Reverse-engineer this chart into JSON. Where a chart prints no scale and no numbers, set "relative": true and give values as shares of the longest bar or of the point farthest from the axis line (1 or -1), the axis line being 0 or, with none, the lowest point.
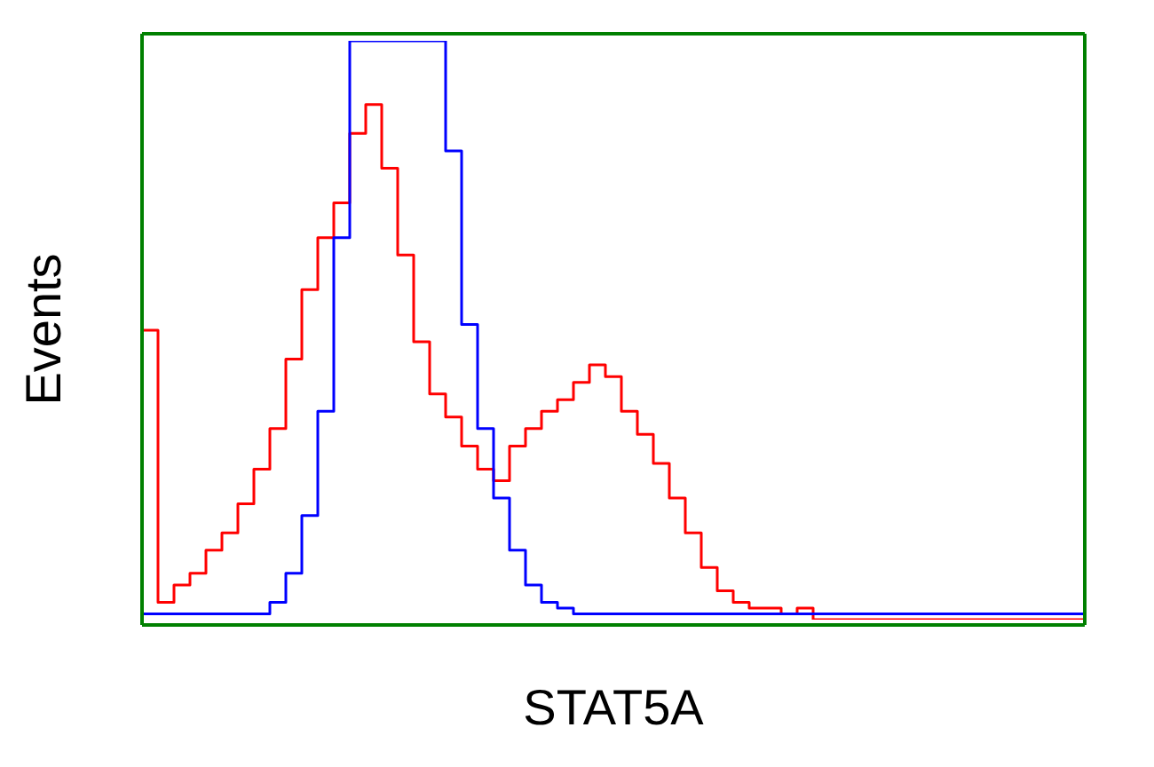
{
  "chart_data": {
    "type": "step",
    "relative": true,
    "xlabel": "STAT5A",
    "ylabel": "Events",
    "legend": false,
    "marker": "none",
    "categories": [
      null,
      null,
      null,
      null,
      null,
      null,
      null,
      null,
      null,
      null,
      null,
      null,
      null,
      null,
      null,
      null,
      null,
      null,
      null,
      null,
      null,
      null,
      null,
      null,
      null,
      null,
      null,
      null,
      null,
      null,
      null,
      null,
      null,
      null,
      null,
      null,
      null,
      null,
      null,
      null,
      null,
      null,
      null,
      null,
      null,
      null,
      null,
      null,
      null,
      null,
      null,
      null,
      null,
      null,
      null,
      null,
      null,
      null,
      null,
      null
    ],
    "series": [
      {
        "color": "#ff0000",
        "values": [
          0.5,
          0.03,
          0.06,
          0.08,
          0.12,
          0.15,
          0.2,
          0.26,
          0.33,
          0.45,
          0.57,
          0.66,
          0.72,
          0.84,
          0.89,
          0.78,
          0.63,
          0.48,
          0.39,
          0.35,
          0.3,
          0.26,
          0.24,
          0.3,
          0.33,
          0.36,
          0.38,
          0.41,
          0.44,
          0.42,
          0.36,
          0.32,
          0.27,
          0.21,
          0.15,
          0.09,
          0.05,
          0.03,
          0.02,
          0.02,
          0.01,
          0.02,
          0,
          0,
          0,
          0,
          0,
          0,
          0,
          0,
          0,
          0,
          0,
          0,
          0,
          0,
          0,
          0,
          0,
          0
        ]
      },
      {
        "color": "#0000ff",
        "values": [
          0.01,
          0.01,
          0.01,
          0.01,
          0.01,
          0.01,
          0.01,
          0.01,
          0.03,
          0.08,
          0.18,
          0.36,
          0.66,
          1,
          1,
          1,
          1,
          1,
          1,
          0.81,
          0.51,
          0.33,
          0.21,
          0.12,
          0.06,
          0.03,
          0.02,
          0.01,
          0.01,
          0.01,
          0.01,
          0.01,
          0.01,
          0.01,
          0.01,
          0.01,
          0.01,
          0.01,
          0.01,
          0.01,
          0.01,
          0.01,
          0.01,
          0.01,
          0.01,
          0.01,
          0.01,
          0.01,
          0.01,
          0.01,
          0.01,
          0.01,
          0.01,
          0.01,
          0.01,
          0.01,
          0.01,
          0.01,
          0.01,
          0.01
        ]
      }
    ]
  }
}
